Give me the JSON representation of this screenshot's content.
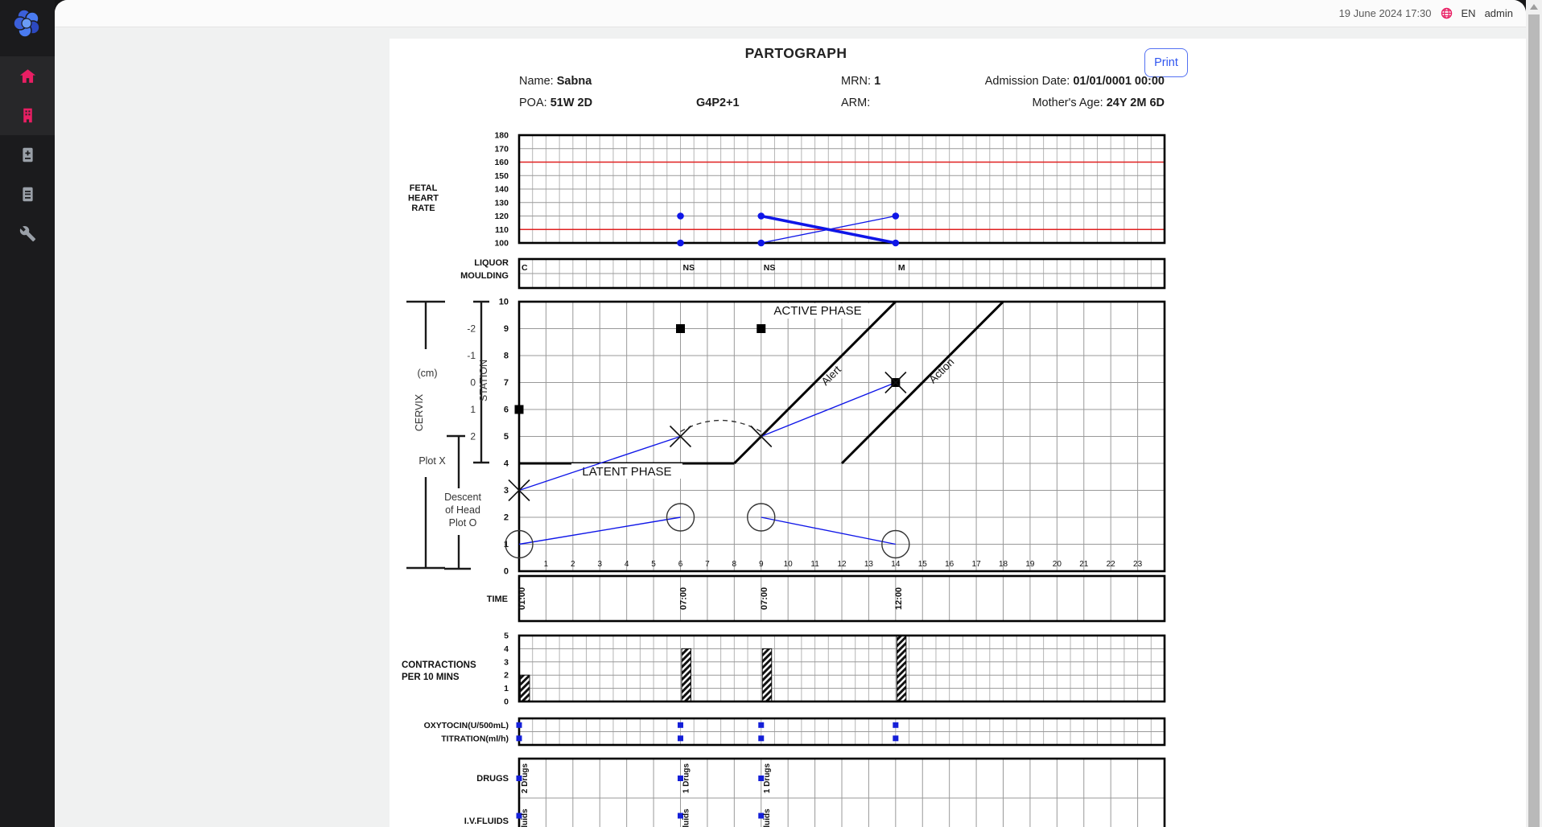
{
  "topbar": {
    "datetime": "19 June 2024 17:30",
    "language": "EN",
    "user": "admin"
  },
  "sidebar": {
    "items": [
      {
        "icon": "home-icon",
        "active": true
      },
      {
        "icon": "hospital-icon",
        "active": true
      },
      {
        "icon": "register-add-icon",
        "active": false
      },
      {
        "icon": "register-icon",
        "active": false
      },
      {
        "icon": "tools-icon",
        "active": false
      }
    ]
  },
  "page": {
    "title": "PARTOGRAPH",
    "print_label": "Print",
    "patient": {
      "name_label": "Name:",
      "name": "Sabna",
      "mrn_label": "MRN:",
      "mrn": "1",
      "admission_label": "Admission Date:",
      "admission": "01/01/0001 00:00",
      "poa_label": "POA:",
      "poa": "51W 2D",
      "gravida": "G4P2+1",
      "arm_label": "ARM:",
      "age_label": "Mother's Age:",
      "age": "24Y 2M 6D"
    }
  },
  "chart_data": {
    "type": "partograph",
    "hours": 24,
    "colors": {
      "data_blue": "#0f16e8",
      "alarm_red": "#e02020",
      "marker_blue": "#1520d8",
      "grid_gray": "#999999",
      "grid_light": "#b5b5b5",
      "accent_pink": "#e91e63"
    },
    "fhr": {
      "label": [
        "FETAL",
        "HEART",
        "RATE"
      ],
      "ymin": 100,
      "ymax": 180,
      "ticks": [
        180,
        170,
        160,
        150,
        140,
        130,
        120,
        110,
        100
      ],
      "red_lines": [
        160,
        110
      ],
      "points": [
        {
          "x": 6,
          "values": [
            120,
            100
          ]
        },
        {
          "x": 9,
          "values": [
            120,
            100
          ]
        },
        {
          "x": 14,
          "values": [
            120,
            100
          ]
        }
      ],
      "segments": [
        {
          "from": [
            9,
            120
          ],
          "to": [
            14,
            100
          ],
          "width": 3.5
        },
        {
          "from": [
            9,
            100
          ],
          "to": [
            14,
            120
          ],
          "width": 1.3
        }
      ]
    },
    "liquor_moulding": {
      "labels": [
        "LIQUOR",
        "MOULDING"
      ],
      "liquor": [
        {
          "x": 0,
          "v": "C"
        },
        {
          "x": 6,
          "v": "NS"
        },
        {
          "x": 9,
          "v": "NS"
        },
        {
          "x": 14,
          "v": "M"
        }
      ],
      "moulding": []
    },
    "cervicograph": {
      "ymin": 0,
      "ymax": 10,
      "x_ticks": [
        1,
        2,
        3,
        4,
        5,
        6,
        7,
        8,
        9,
        10,
        11,
        12,
        13,
        14,
        15,
        16,
        17,
        18,
        19,
        20,
        21,
        22,
        23
      ],
      "active_phase_label": "ACTIVE PHASE",
      "latent_phase_label": "LATENT PHASE",
      "alert_label": "Alert",
      "action_label": "Action",
      "latent_ceiling": {
        "from": [
          0,
          4
        ],
        "to": [
          8,
          4
        ]
      },
      "alert_line": {
        "from": [
          8,
          4
        ],
        "to": [
          14,
          10
        ]
      },
      "action_line": {
        "from": [
          12,
          4
        ],
        "to": [
          18,
          10
        ]
      },
      "cervix_points": [
        [
          0,
          3
        ],
        [
          6,
          5
        ],
        [
          9,
          5
        ],
        [
          14,
          7
        ]
      ],
      "cervix_lines": [
        [
          [
            0,
            3
          ],
          [
            6,
            5
          ]
        ],
        [
          [
            9,
            5
          ],
          [
            14,
            7
          ]
        ]
      ],
      "cervix_dashed_arc": [
        [
          6,
          5
        ],
        [
          9,
          5
        ]
      ],
      "station_points": [
        [
          0,
          6
        ],
        [
          6,
          9
        ],
        [
          9,
          9
        ],
        [
          14,
          7
        ]
      ],
      "descent_points": [
        [
          0,
          1
        ],
        [
          6,
          2
        ],
        [
          9,
          2
        ],
        [
          14,
          1
        ]
      ],
      "descent_lines": [
        [
          [
            0,
            1
          ],
          [
            6,
            2
          ]
        ],
        [
          [
            9,
            2
          ],
          [
            14,
            1
          ]
        ]
      ],
      "axis_labels": {
        "cervix": "CERVIX",
        "cm": "(cm)",
        "plot_x": "Plot X",
        "station": "STATION",
        "station_ticks": [
          "-2",
          "-1",
          "0",
          "1",
          "2"
        ],
        "descent": [
          "Descent",
          "of Head",
          "Plot O"
        ]
      }
    },
    "time_row": {
      "label": "TIME",
      "entries": [
        {
          "x": 0,
          "t": "01:00"
        },
        {
          "x": 6,
          "t": "07:00"
        },
        {
          "x": 9,
          "t": "07:00"
        },
        {
          "x": 14,
          "t": "12:00"
        }
      ]
    },
    "contractions": {
      "label": [
        "CONTRACTIONS",
        "PER 10 MINS"
      ],
      "ymin": 0,
      "ymax": 5,
      "ticks": [
        5,
        4,
        3,
        2,
        1,
        0
      ],
      "bars": [
        {
          "x": 0,
          "h": 2
        },
        {
          "x": 6,
          "h": 4
        },
        {
          "x": 9,
          "h": 4
        },
        {
          "x": 14,
          "h": 5
        }
      ]
    },
    "oxytocin": {
      "labels": [
        "OXYTOCIN(U/500mL)",
        "TITRATION(ml/h)"
      ],
      "row1": [
        0,
        6,
        9,
        14
      ],
      "row2": [
        0,
        6,
        9,
        14
      ]
    },
    "drugs": {
      "label": "DRUGS",
      "entries": [
        {
          "x": 0,
          "t": "2 Drugs"
        },
        {
          "x": 6,
          "t": "1 Drugs"
        },
        {
          "x": 9,
          "t": "1 Drugs"
        }
      ]
    },
    "iv_fluids": {
      "label": "I.V.FLUIDS",
      "entries": [
        {
          "x": 0,
          "t": "Fluids"
        },
        {
          "x": 6,
          "t": "Fluids"
        },
        {
          "x": 9,
          "t": "Fluids"
        }
      ]
    }
  }
}
